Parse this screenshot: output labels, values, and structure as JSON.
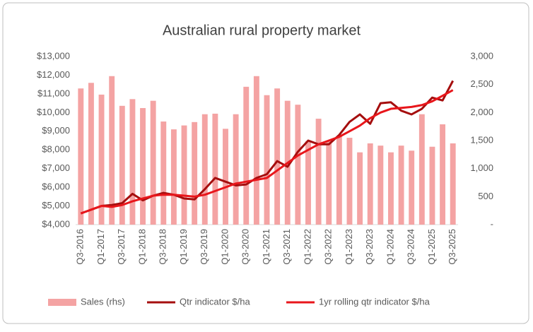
{
  "chart_data": {
    "type": "combo",
    "title": "Australian rural property market",
    "categories": [
      "Q3-2016",
      null,
      "Q1-2017",
      null,
      "Q3-2017",
      null,
      "Q1-2018",
      null,
      "Q3-2018",
      null,
      "Q1-2019",
      null,
      "Q3-2019",
      null,
      "Q1-2020",
      null,
      "Q3-2020",
      null,
      "Q1-2021",
      null,
      "Q3-2021",
      null,
      "Q1-2022",
      null,
      "Q3-2022",
      null,
      "Q1-2023",
      null,
      "Q3-2023",
      null,
      "Q1-2024",
      null,
      "Q3-2024",
      null,
      "Q1-2025",
      null,
      "Q3-2025"
    ],
    "series": [
      {
        "name": "Sales (rhs)",
        "type": "bar",
        "axis": "y2",
        "color": "#f4a3a3",
        "values": [
          2430,
          2530,
          2320,
          2650,
          2120,
          2240,
          2080,
          2210,
          1840,
          1700,
          1770,
          1830,
          1970,
          1980,
          1710,
          1970,
          2460,
          2650,
          2310,
          2430,
          2210,
          2140,
          1490,
          1890,
          1490,
          1580,
          1550,
          1290,
          1450,
          1410,
          1290,
          1410,
          1320,
          1970,
          1390,
          1790,
          1450
        ]
      },
      {
        "name": "Qtr indicator $/ha",
        "type": "line",
        "color": "#a50e0e",
        "values": [
          4600,
          4800,
          5000,
          5050,
          5150,
          5650,
          5300,
          5550,
          5700,
          5600,
          5400,
          5350,
          5900,
          6500,
          6300,
          6100,
          6150,
          6500,
          6700,
          7400,
          7100,
          7900,
          8500,
          8300,
          8300,
          8800,
          9500,
          9900,
          9400,
          10500,
          10550,
          10100,
          9900,
          10200,
          10800,
          10650,
          11700
        ]
      },
      {
        "name": "1yr rolling qtr indicator $/ha",
        "type": "line",
        "color": "#e8161b",
        "values": [
          4600,
          4800,
          5000,
          4950,
          5050,
          5250,
          5400,
          5550,
          5600,
          5600,
          5550,
          5500,
          5600,
          5800,
          6000,
          6200,
          6300,
          6400,
          6500,
          6900,
          7300,
          7700,
          8000,
          8300,
          8500,
          8700,
          9000,
          9300,
          9700,
          10000,
          10200,
          10250,
          10300,
          10400,
          10600,
          10900,
          11200
        ]
      }
    ],
    "ylim": [
      4000,
      13000
    ],
    "yticks": [
      {
        "value": 4000,
        "label": "$4,000"
      },
      {
        "value": 5000,
        "label": "$5,000"
      },
      {
        "value": 6000,
        "label": "$6,000"
      },
      {
        "value": 7000,
        "label": "$7,000"
      },
      {
        "value": 8000,
        "label": "$8,000"
      },
      {
        "value": 9000,
        "label": "$9,000"
      },
      {
        "value": 10000,
        "label": "$10,000"
      },
      {
        "value": 11000,
        "label": "$11,000"
      },
      {
        "value": 12000,
        "label": "$12,000"
      },
      {
        "value": 13000,
        "label": "$13,000"
      }
    ],
    "y2lim": [
      0,
      3000
    ],
    "y2ticks": [
      {
        "value": 0,
        "label": "-"
      },
      500,
      {
        "value": 1000,
        "label": "1,000"
      },
      {
        "value": 1500,
        "label": "1,500"
      },
      {
        "value": 2000,
        "label": "2,000"
      },
      {
        "value": 2500,
        "label": "2,500"
      },
      {
        "value": 3000,
        "label": "3,000"
      }
    ],
    "grid": false,
    "legend": "bottom"
  }
}
